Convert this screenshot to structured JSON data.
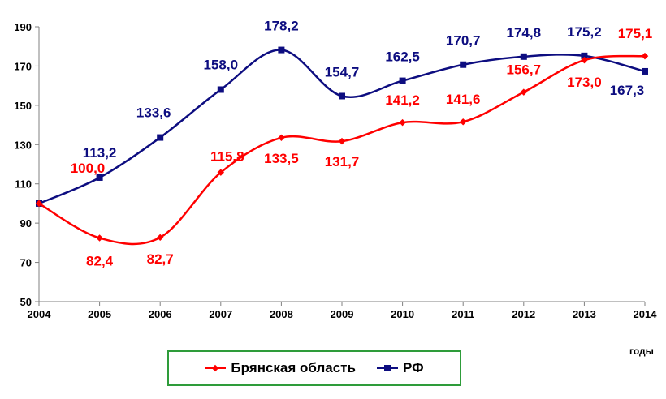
{
  "chart_data": {
    "type": "line",
    "x": [
      "2004",
      "2005",
      "2006",
      "2007",
      "2008",
      "2009",
      "2010",
      "2011",
      "2012",
      "2013",
      "2014"
    ],
    "xlabel": "годы",
    "ylabel": "",
    "title": "",
    "ylim": [
      50,
      190
    ],
    "yticks": [
      50,
      70,
      90,
      110,
      130,
      150,
      170,
      190
    ],
    "grid": false,
    "legend_position": "bottom",
    "series": [
      {
        "name": "Брянская область",
        "color": "#ff0000",
        "marker": "diamond",
        "values": [
          100.0,
          82.4,
          82.7,
          115.8,
          133.5,
          131.7,
          141.2,
          141.6,
          156.7,
          173.0,
          175.1
        ],
        "labels": [
          "100,0",
          "82,4",
          "82,7",
          "115,8",
          "133,5",
          "131,7",
          "141,2",
          "141,6",
          "156,7",
          "173,0",
          "175,1"
        ]
      },
      {
        "name": "РФ",
        "color": "#0d0d80",
        "marker": "square",
        "values": [
          100.0,
          113.2,
          133.6,
          158.0,
          178.2,
          154.7,
          162.5,
          170.7,
          174.8,
          175.2,
          167.3
        ],
        "labels": [
          "",
          "113,2",
          "133,6",
          "158,0",
          "178,2",
          "154,7",
          "162,5",
          "170,7",
          "174,8",
          "175,2",
          "167,3"
        ]
      }
    ]
  }
}
